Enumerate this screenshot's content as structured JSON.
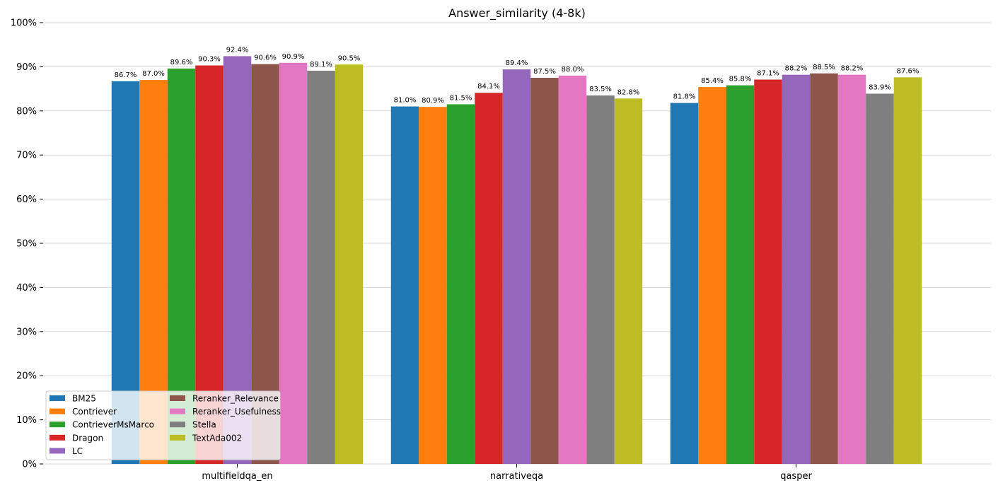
{
  "chart_data": {
    "type": "bar",
    "title": "Answer_similarity (4-8k)",
    "xlabel": "",
    "ylabel": "",
    "ylim": [
      0,
      100
    ],
    "y_ticks": [
      "0%",
      "10%",
      "20%",
      "30%",
      "40%",
      "50%",
      "60%",
      "70%",
      "80%",
      "90%",
      "100%"
    ],
    "grid": "horizontal",
    "legend_position": "lower-left",
    "categories": [
      "multifieldqa_en",
      "narrativeqa",
      "qasper"
    ],
    "series": [
      {
        "name": "BM25",
        "color": "#1f77b4",
        "values": [
          86.7,
          81.0,
          81.8
        ],
        "labels": [
          "86.7%",
          "81.0%",
          "81.8%"
        ]
      },
      {
        "name": "Contriever",
        "color": "#ff7f0e",
        "values": [
          87.0,
          80.9,
          85.4
        ],
        "labels": [
          "87.0%",
          "80.9%",
          "85.4%"
        ]
      },
      {
        "name": "ContrieverMsMarco",
        "color": "#2ca02c",
        "values": [
          89.6,
          81.5,
          85.8
        ],
        "labels": [
          "89.6%",
          "81.5%",
          "85.8%"
        ]
      },
      {
        "name": "Dragon",
        "color": "#d62728",
        "values": [
          90.3,
          84.1,
          87.1
        ],
        "labels": [
          "90.3%",
          "84.1%",
          "87.1%"
        ]
      },
      {
        "name": "LC",
        "color": "#9467bd",
        "values": [
          92.4,
          89.4,
          88.2
        ],
        "labels": [
          "92.4%",
          "89.4%",
          "88.2%"
        ]
      },
      {
        "name": "Reranker_Relevance",
        "color": "#8c564b",
        "values": [
          90.6,
          87.5,
          88.5
        ],
        "labels": [
          "90.6%",
          "87.5%",
          "88.5%"
        ]
      },
      {
        "name": "Reranker_Usefulness",
        "color": "#e377c2",
        "values": [
          90.9,
          88.0,
          88.2
        ],
        "labels": [
          "90.9%",
          "88.0%",
          "88.2%"
        ]
      },
      {
        "name": "Stella",
        "color": "#7f7f7f",
        "values": [
          89.1,
          83.5,
          83.9
        ],
        "labels": [
          "89.1%",
          "83.5%",
          "83.9%"
        ]
      },
      {
        "name": "TextAda002",
        "color": "#bcbd22",
        "values": [
          90.5,
          82.8,
          87.6
        ],
        "labels": [
          "90.5%",
          "82.8%",
          "87.6%"
        ]
      }
    ]
  }
}
